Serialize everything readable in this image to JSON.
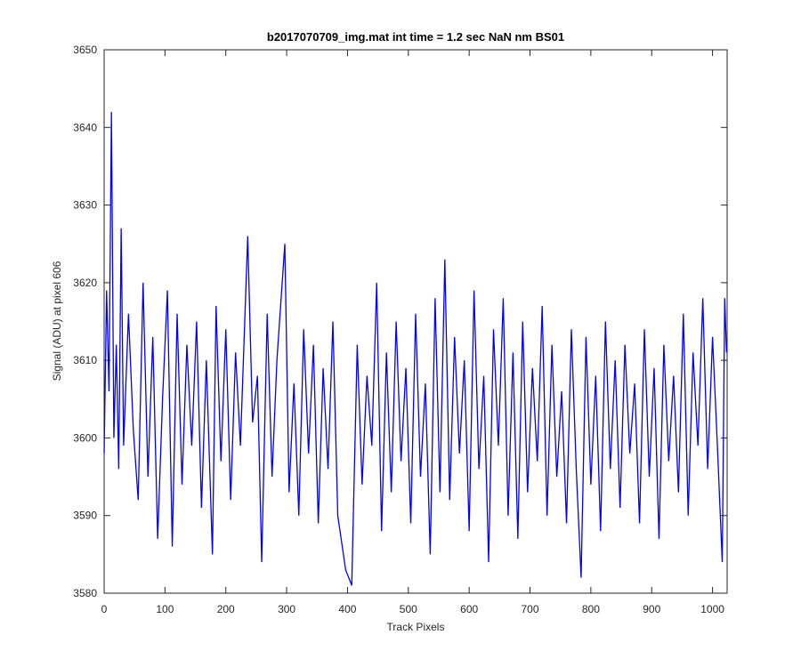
{
  "chart_data": {
    "type": "line",
    "title": "b2017070709_img.mat int time = 1.2 sec  NaN nm BS01",
    "xlabel": "Track Pixels",
    "ylabel": "Signal (ADU) at pixel 606",
    "x": [
      0,
      4,
      8,
      12,
      16,
      20,
      24,
      28,
      32,
      40,
      48,
      56,
      64,
      72,
      80,
      88,
      96,
      104,
      112,
      120,
      128,
      136,
      144,
      152,
      160,
      168,
      178,
      184,
      192,
      200,
      208,
      216,
      224,
      236,
      244,
      252,
      259,
      268,
      276,
      284,
      297,
      304,
      312,
      320,
      328,
      336,
      344,
      352,
      360,
      368,
      376,
      384,
      397,
      407,
      416,
      424,
      432,
      440,
      448,
      456,
      464,
      472,
      480,
      488,
      496,
      504,
      512,
      520,
      528,
      536,
      544,
      552,
      560,
      568,
      576,
      584,
      592,
      600,
      608,
      616,
      624,
      632,
      640,
      648,
      656,
      664,
      672,
      680,
      688,
      696,
      704,
      712,
      720,
      728,
      736,
      744,
      752,
      760,
      768,
      776,
      784,
      792,
      800,
      808,
      816,
      824,
      832,
      840,
      848,
      856,
      864,
      872,
      880,
      888,
      896,
      904,
      912,
      920,
      928,
      936,
      944,
      952,
      960,
      968,
      976,
      984,
      992,
      1000,
      1008,
      1016,
      1020,
      1023
    ],
    "series": [
      {
        "name": "signal",
        "color": "#0000ff",
        "values": [
          3598,
          3619,
          3606,
          3642,
          3600,
          3612,
          3596,
          3627,
          3599,
          3616,
          3601,
          3592,
          3620,
          3595,
          3613,
          3587,
          3605,
          3619,
          3586,
          3616,
          3594,
          3612,
          3599,
          3615,
          3591,
          3610,
          3585,
          3617,
          3597,
          3614,
          3592,
          3611,
          3599,
          3626,
          3602,
          3608,
          3584,
          3616,
          3595,
          3610,
          3625,
          3593,
          3607,
          3590,
          3614,
          3598,
          3612,
          3589,
          3609,
          3596,
          3615,
          3590,
          3583,
          3581,
          3612,
          3594,
          3608,
          3599,
          3620,
          3588,
          3611,
          3593,
          3615,
          3597,
          3609,
          3589,
          3616,
          3595,
          3607,
          3585,
          3618,
          3593,
          3623,
          3592,
          3613,
          3598,
          3610,
          3588,
          3619,
          3596,
          3608,
          3584,
          3614,
          3599,
          3618,
          3590,
          3611,
          3587,
          3615,
          3593,
          3609,
          3597,
          3617,
          3590,
          3612,
          3595,
          3606,
          3589,
          3614,
          3596,
          3582,
          3613,
          3594,
          3608,
          3588,
          3615,
          3596,
          3610,
          3591,
          3612,
          3598,
          3607,
          3589,
          3614,
          3595,
          3609,
          3587,
          3612,
          3597,
          3608,
          3593,
          3616,
          3590,
          3611,
          3599,
          3618,
          3596,
          3613,
          3599,
          3584,
          3618,
          3611
        ]
      }
    ],
    "xlim": [
      0,
      1024
    ],
    "ylim": [
      3580,
      3650
    ],
    "xticks": [
      0,
      100,
      200,
      300,
      400,
      500,
      600,
      700,
      800,
      900,
      1000
    ],
    "yticks": [
      3580,
      3590,
      3600,
      3610,
      3620,
      3630,
      3640,
      3650
    ],
    "grid": false
  }
}
